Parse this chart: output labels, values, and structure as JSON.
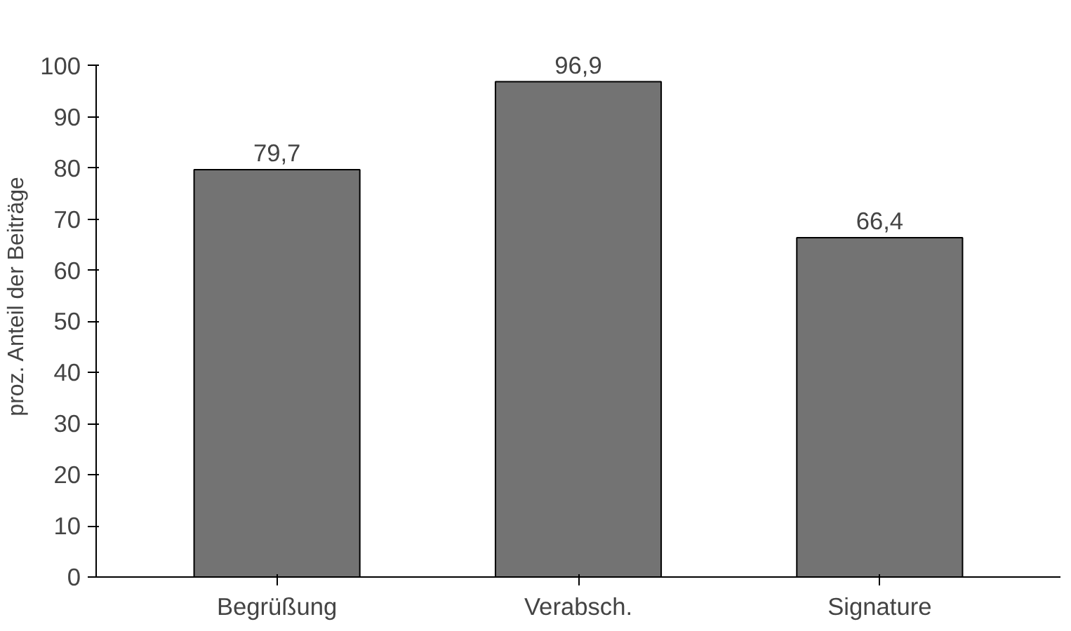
{
  "chart_data": {
    "type": "bar",
    "ylabel": "proz. Anteil der Beiträge",
    "categories": [
      "Begrüßung",
      "Verabsch.",
      "Signature"
    ],
    "values": [
      79.7,
      96.9,
      66.4
    ],
    "value_labels": [
      "79,7",
      "96,9",
      "66,4"
    ],
    "color": "#737373",
    "ylim": [
      0,
      100
    ],
    "yticks": [
      0,
      10,
      20,
      30,
      40,
      50,
      60,
      70,
      80,
      90,
      100
    ],
    "grid": false
  }
}
